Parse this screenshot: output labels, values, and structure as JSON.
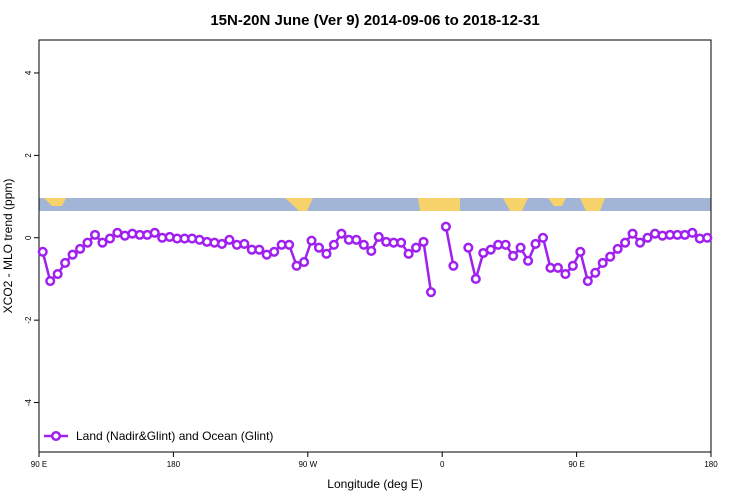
{
  "chart_data": {
    "type": "line",
    "title": "15N-20N June (Ver 9)   2014-09-06 to 2018-12-31",
    "x_label": "Longitude (deg E)",
    "y_label": "XCO2 - MLO trend (ppm)",
    "xlim": [
      90,
      540
    ],
    "ylim": [
      -5.2,
      4.8
    ],
    "xticks": [
      {
        "value": 90,
        "label": "90 E"
      },
      180,
      {
        "value": 270,
        "label": "90 W"
      },
      {
        "value": 360,
        "label": "0"
      },
      {
        "value": 450,
        "label": "90 E"
      },
      {
        "value": 540,
        "label": "180"
      }
    ],
    "yticks": [
      -4,
      -2,
      0,
      2,
      4
    ],
    "legend": "bottom-left",
    "x": [
      92.5,
      97.5,
      102.5,
      107.5,
      112.5,
      117.5,
      122.5,
      127.5,
      132.5,
      137.5,
      142.5,
      147.5,
      152.5,
      157.5,
      162.5,
      167.5,
      172.5,
      177.5,
      182.5,
      187.5,
      192.5,
      197.5,
      202.5,
      207.5,
      212.5,
      217.5,
      222.5,
      227.5,
      232.5,
      237.5,
      242.5,
      247.5,
      252.5,
      257.5,
      262.5,
      267.5,
      272.5,
      277.5,
      282.5,
      287.5,
      292.5,
      297.5,
      302.5,
      307.5,
      312.5,
      317.5,
      322.5,
      327.5,
      332.5,
      337.5,
      342.5,
      347.5,
      352.5,
      357.5,
      362.5,
      367.5,
      372.5,
      377.5,
      382.5,
      387.5,
      392.5,
      397.5,
      402.5,
      407.5,
      412.5,
      417.5,
      422.5,
      427.5,
      432.5,
      437.5,
      442.5,
      447.5,
      452.5,
      457.5,
      462.5,
      467.5,
      472.5,
      477.5,
      482.5,
      487.5,
      492.5,
      497.5,
      502.5,
      507.5,
      512.5,
      517.5,
      522.5,
      527.5,
      532.5,
      537.5
    ],
    "series": [
      {
        "name": "Land (Nadir&Glint) and Ocean (Glint)",
        "color": "#a020f0",
        "values": [
          -0.34,
          -1.05,
          -0.88,
          -0.61,
          -0.41,
          -0.27,
          -0.12,
          0.07,
          -0.12,
          -0.02,
          0.12,
          0.05,
          0.1,
          0.07,
          0.07,
          0.12,
          0,
          0.02,
          -0.02,
          -0.02,
          -0.02,
          -0.05,
          -0.1,
          -0.12,
          -0.15,
          -0.05,
          -0.17,
          -0.15,
          -0.29,
          -0.29,
          -0.41,
          -0.34,
          -0.17,
          -0.17,
          -0.68,
          -0.59,
          -0.07,
          -0.24,
          -0.39,
          -0.17,
          0.1,
          -0.05,
          -0.05,
          -0.17,
          -0.32,
          0.02,
          -0.1,
          -0.12,
          -0.12,
          -0.39,
          -0.24,
          -0.1,
          -1.32,
          null,
          0.27,
          -0.68,
          null,
          -0.24,
          -1.0,
          -0.37,
          -0.29,
          -0.17,
          -0.17,
          -0.44,
          -0.24,
          -0.56,
          -0.15,
          0,
          -0.73,
          -0.73,
          -0.88,
          -0.68,
          -0.34,
          -1.05,
          -0.85,
          -0.61,
          -0.46,
          -0.27,
          -0.12,
          0.1,
          -0.12,
          0,
          0.1,
          0.05,
          0.07,
          0.07,
          0.07,
          0.12,
          -0.02,
          0
        ]
      }
    ]
  }
}
